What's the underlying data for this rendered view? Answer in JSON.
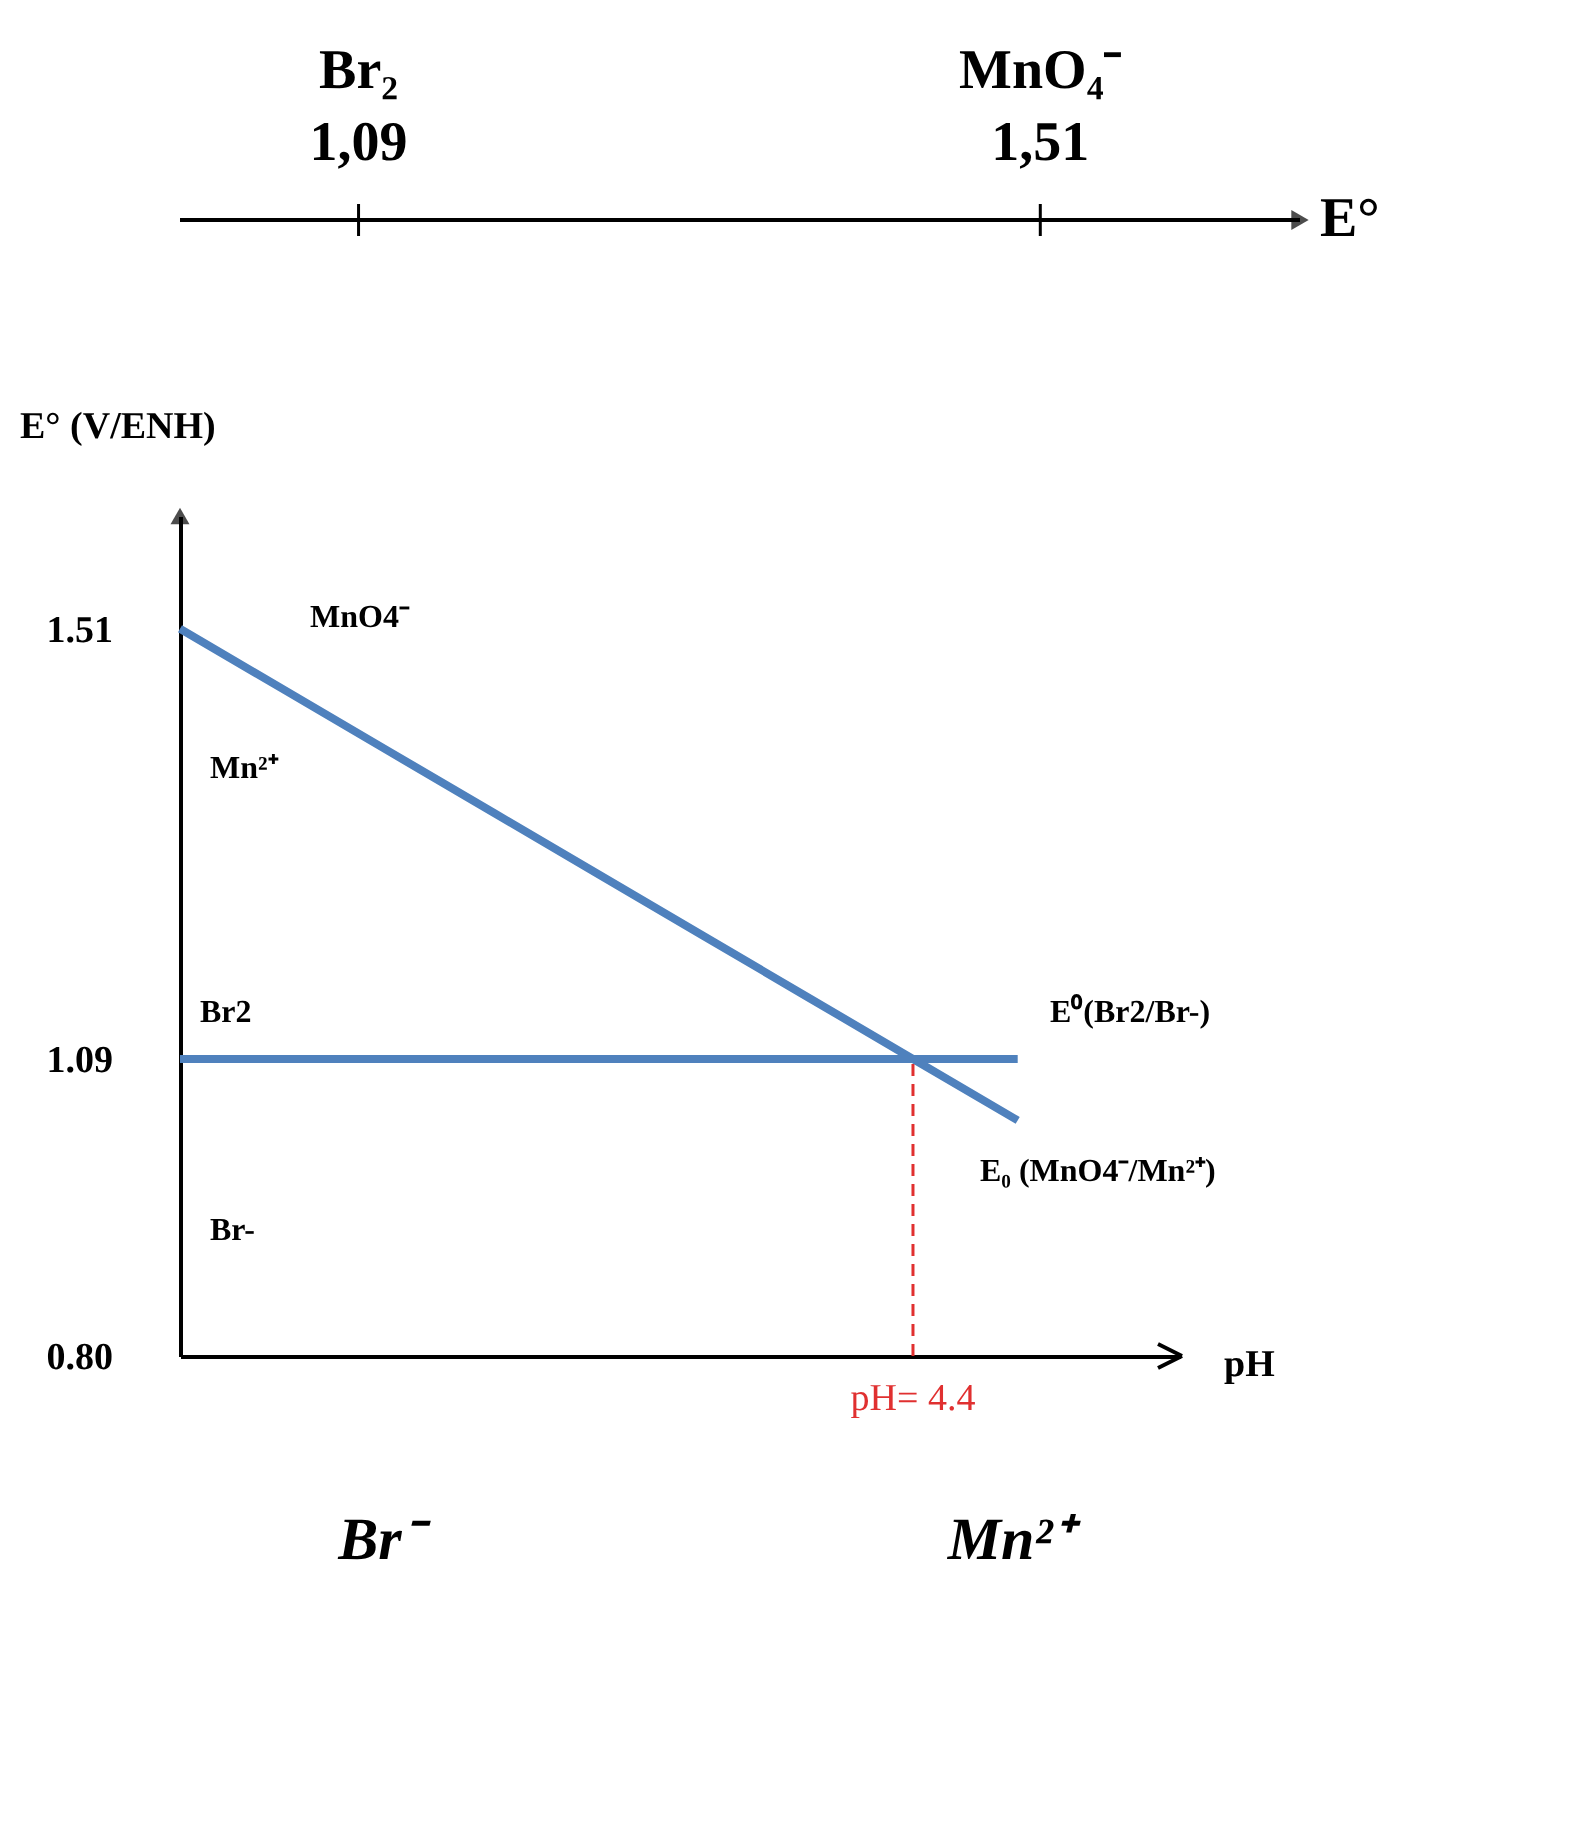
{
  "chart_data": [
    {
      "type": "other",
      "xlabel": "E°",
      "categories": [
        "Br₂",
        "MnO₄⁻"
      ],
      "values": [
        1.09,
        1.51
      ],
      "value_labels": [
        "1,09",
        "1,51"
      ]
    },
    {
      "type": "line",
      "ylabel": "E° (V/ENH)",
      "xlabel": "pH",
      "categories": [
        null,
        null,
        null,
        null,
        null,
        null,
        null,
        null,
        null,
        null
      ],
      "series": [
        {
          "color": "#4f81bd",
          "values": [
            1.51,
            1.45,
            1.39,
            1.33,
            1.27,
            1.21,
            1.15,
            1.09,
            1.03,
            null
          ]
        },
        {
          "color": "#4f81bd",
          "values": [
            1.09,
            1.09,
            1.09,
            1.09,
            1.09,
            1.09,
            1.09,
            1.09,
            1.09,
            null
          ]
        }
      ],
      "ylim": [
        0.8,
        1.62
      ],
      "yticks": [
        {
          "value": 0.8,
          "label": "0.80"
        },
        1.09,
        1.51
      ],
      "tick_labels": "y",
      "grid": false,
      "marker": "none",
      "line_style": "solid",
      "annotations": [
        "MnO4⁻",
        "Mn²⁺",
        "Br2",
        "Br-",
        "E⁰(Br2/Br-)",
        "E₀ (MnO4⁻/Mn²⁺)",
        "pH= 4.4",
        "Br⁻",
        "Mn²⁺"
      ]
    }
  ]
}
